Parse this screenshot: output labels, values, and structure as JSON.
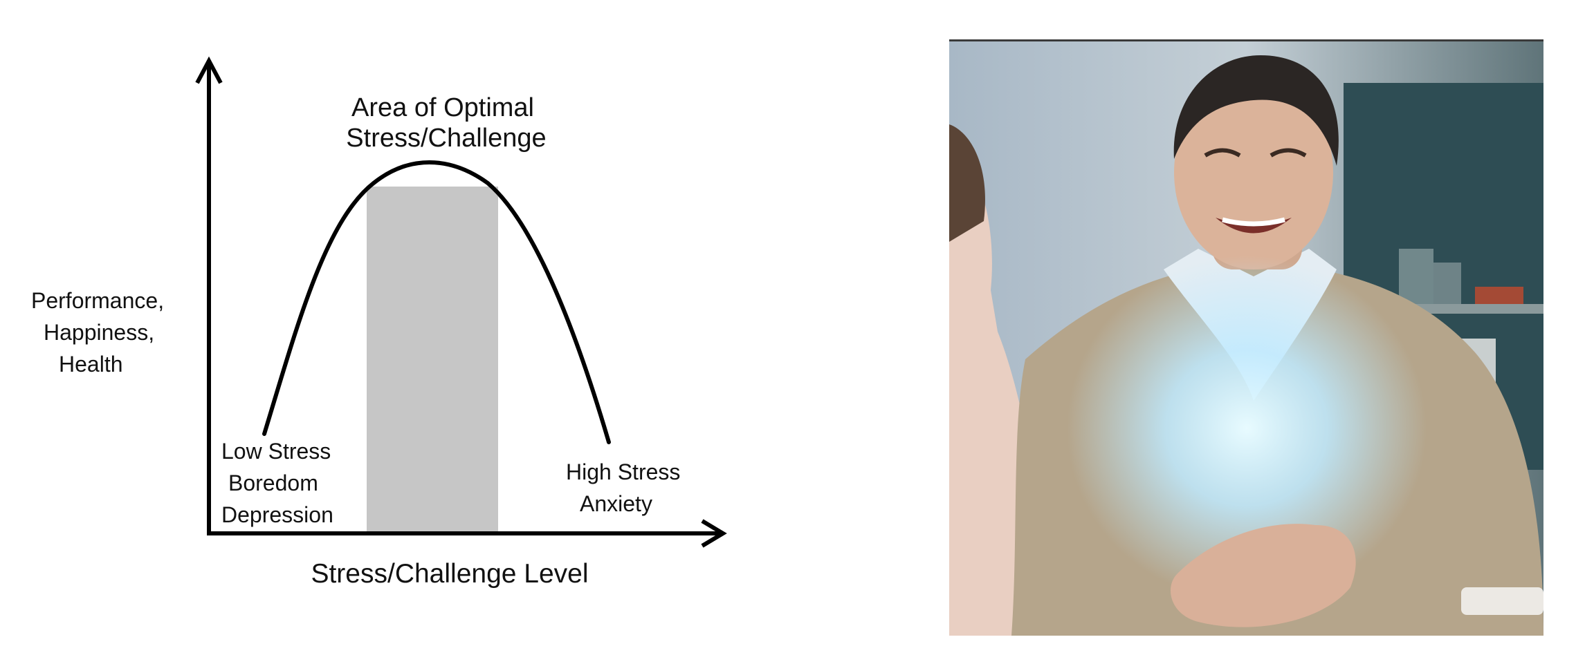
{
  "diagram": {
    "top_label": [
      "Area of Optimal",
      "Stress/Challenge"
    ],
    "y_axis_label": [
      "Performance,",
      "Happiness,",
      "Health"
    ],
    "x_axis_label": "Stress/Challenge Level",
    "low_stress_label": [
      "Low Stress",
      "Boredom",
      "Depression"
    ],
    "high_stress_label": [
      "High Stress",
      "Anxiety"
    ],
    "shaded_color": "#c6c6c6",
    "curve_color": "#000000"
  },
  "photo": {
    "subject": "laughing man with glowing light on chest",
    "colors": {
      "wall": "#9fb0bd",
      "sweater": "#b7a68c",
      "shirt": "#e6eef4",
      "skin": "#d9b49a",
      "glow": "#c8f0ff",
      "shelf": "#2d4e55"
    }
  }
}
